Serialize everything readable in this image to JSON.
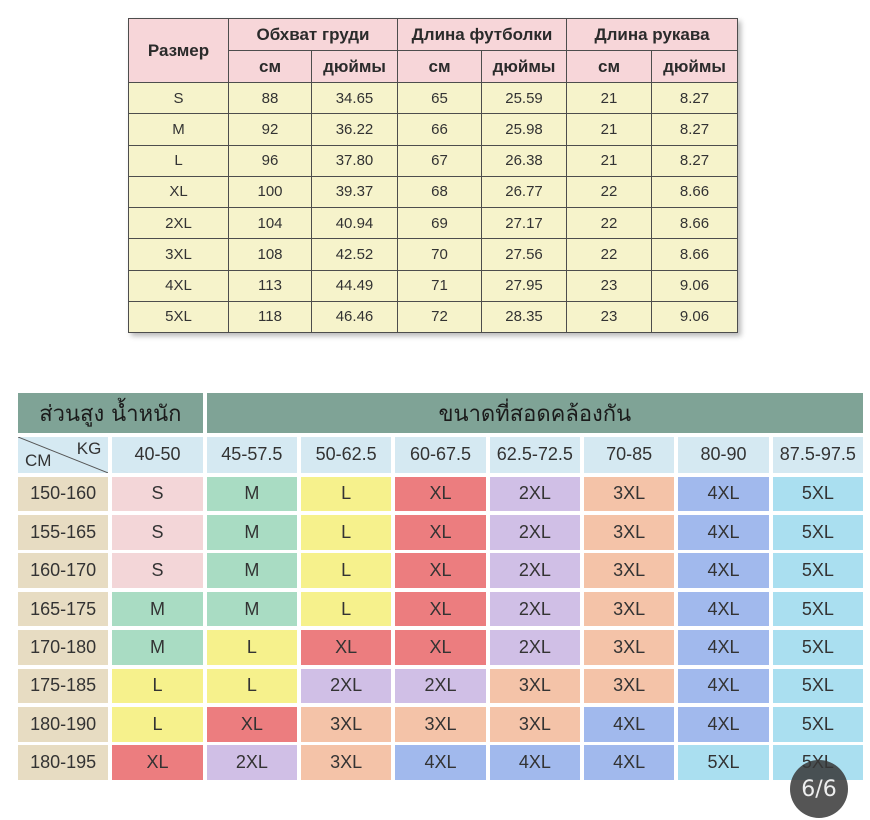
{
  "viewer": {
    "page_indicator": "6/6"
  },
  "size_table": {
    "header_size": "Размер",
    "groups": [
      {
        "label": "Обхват груди",
        "units": [
          "см",
          "дюймы"
        ]
      },
      {
        "label": "Длина футболки",
        "units": [
          "см",
          "дюймы"
        ]
      },
      {
        "label": "Длина рукава",
        "units": [
          "см",
          "дюймы"
        ]
      }
    ],
    "rows": [
      [
        "S",
        "88",
        "34.65",
        "65",
        "25.59",
        "21",
        "8.27"
      ],
      [
        "M",
        "92",
        "36.22",
        "66",
        "25.98",
        "21",
        "8.27"
      ],
      [
        "L",
        "96",
        "37.80",
        "67",
        "26.38",
        "21",
        "8.27"
      ],
      [
        "XL",
        "100",
        "39.37",
        "68",
        "26.77",
        "22",
        "8.66"
      ],
      [
        "2XL",
        "104",
        "40.94",
        "69",
        "27.17",
        "22",
        "8.66"
      ],
      [
        "3XL",
        "108",
        "42.52",
        "70",
        "27.56",
        "22",
        "8.66"
      ],
      [
        "4XL",
        "113",
        "44.49",
        "71",
        "27.95",
        "23",
        "9.06"
      ],
      [
        "5XL",
        "118",
        "46.46",
        "72",
        "28.35",
        "23",
        "9.06"
      ]
    ],
    "colors": {
      "header_bg": "#f7d6d9",
      "body_bg": "#f6f3cb",
      "border": "#4d4d4d"
    }
  },
  "fit_table": {
    "header_left": "ส่วนสูง น้ำหนัก",
    "header_right": "ขนาดที่สอดคล้องกัน",
    "corner_weight_label": "KG",
    "corner_height_label": "CM",
    "weight_ranges": [
      "40-50",
      "45-57.5",
      "50-62.5",
      "60-67.5",
      "62.5-72.5",
      "70-85",
      "80-90",
      "87.5-97.5"
    ],
    "rows": [
      {
        "height": "150-160",
        "sizes": [
          "S",
          "M",
          "L",
          "XL",
          "2XL",
          "3XL",
          "4XL",
          "5XL"
        ]
      },
      {
        "height": "155-165",
        "sizes": [
          "S",
          "M",
          "L",
          "XL",
          "2XL",
          "3XL",
          "4XL",
          "5XL"
        ]
      },
      {
        "height": "160-170",
        "sizes": [
          "S",
          "M",
          "L",
          "XL",
          "2XL",
          "3XL",
          "4XL",
          "5XL"
        ]
      },
      {
        "height": "165-175",
        "sizes": [
          "M",
          "M",
          "L",
          "XL",
          "2XL",
          "3XL",
          "4XL",
          "5XL"
        ]
      },
      {
        "height": "170-180",
        "sizes": [
          "M",
          "L",
          "XL",
          "XL",
          "2XL",
          "3XL",
          "4XL",
          "5XL"
        ]
      },
      {
        "height": "175-185",
        "sizes": [
          "L",
          "L",
          "2XL",
          "2XL",
          "3XL",
          "3XL",
          "4XL",
          "5XL"
        ]
      },
      {
        "height": "180-190",
        "sizes": [
          "L",
          "XL",
          "3XL",
          "3XL",
          "3XL",
          "4XL",
          "4XL",
          "5XL"
        ]
      },
      {
        "height": "180-195",
        "sizes": [
          "XL",
          "2XL",
          "3XL",
          "4XL",
          "4XL",
          "4XL",
          "5XL",
          "5XL"
        ]
      }
    ],
    "colors": {
      "title_bg": "#7fa396",
      "weight_header_bg": "#d5e9f2",
      "height_col_bg": "#e7dcc2",
      "diagonal": "#555555",
      "sizes": {
        "S": "#f3d6d8",
        "M": "#a9dcc3",
        "L": "#f6f18c",
        "XL": "#ec7d7f",
        "2XL": "#d0bfe6",
        "3XL": "#f4c3a8",
        "4XL": "#a1b9ed",
        "5XL": "#aadff0"
      }
    }
  }
}
